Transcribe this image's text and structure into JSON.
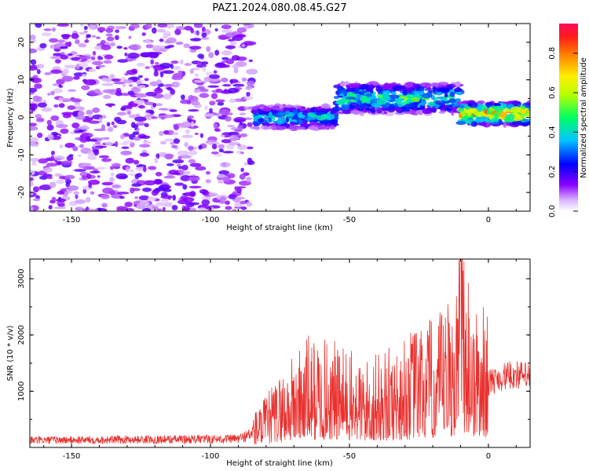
{
  "figure_title": "PAZ1.2024.080.08.45.G27",
  "chart_data": [
    {
      "type": "heatmap",
      "title": "",
      "xlabel": "Height of straight line (km)",
      "ylabel": "Frequency (Hz)",
      "xlim": [
        -165,
        15
      ],
      "ylim": [
        -25,
        25
      ],
      "xticks": [
        "-150",
        "-100",
        "-50",
        "0"
      ],
      "yticks": [
        "20",
        "10",
        "0",
        "-10",
        "-20"
      ],
      "colorbar": {
        "label": "Normalized spectral amplitude",
        "range": [
          0,
          0.95
        ],
        "ticks": [
          "0.0",
          "0.2",
          "0.4",
          "0.6",
          "0.8"
        ],
        "colormap": "gist_rainbow_r"
      },
      "regions": [
        {
          "x": [
            -165,
            -85
          ],
          "freq_center": 0,
          "pattern": "diffuse",
          "amplitude": 0.12
        },
        {
          "x": [
            -85,
            -55
          ],
          "freq_center": 0,
          "freq_width": 3,
          "amplitude": 0.4
        },
        {
          "x": [
            -55,
            -10
          ],
          "freq_center": 5,
          "freq_width": 4,
          "amplitude": 0.45
        },
        {
          "x": [
            -10,
            15
          ],
          "freq_center": 1,
          "freq_width": 3,
          "amplitude": 0.75
        }
      ]
    },
    {
      "type": "line",
      "title": "",
      "xlabel": "Height of straight line (km)",
      "ylabel": "SNR (10 * v/v)",
      "xlim": [
        -165,
        15
      ],
      "ylim": [
        0,
        3350
      ],
      "xticks": [
        "-150",
        "-100",
        "-50",
        "0"
      ],
      "yticks": [
        "1000",
        "2000",
        "3000"
      ],
      "color": "#e8312e",
      "envelope": [
        {
          "x": -165,
          "y": 150
        },
        {
          "x": -140,
          "y": 160
        },
        {
          "x": -110,
          "y": 170
        },
        {
          "x": -90,
          "y": 180
        },
        {
          "x": -82,
          "y": 350
        },
        {
          "x": -75,
          "y": 600
        },
        {
          "x": -65,
          "y": 900
        },
        {
          "x": -55,
          "y": 850
        },
        {
          "x": -45,
          "y": 700
        },
        {
          "x": -35,
          "y": 800
        },
        {
          "x": -25,
          "y": 1000
        },
        {
          "x": -18,
          "y": 1050
        },
        {
          "x": -12,
          "y": 1300
        },
        {
          "x": -9,
          "y": 1800
        },
        {
          "x": -5,
          "y": 1100
        },
        {
          "x": 0,
          "y": 1150
        },
        {
          "x": 5,
          "y": 1250
        },
        {
          "x": 10,
          "y": 1300
        },
        {
          "x": 15,
          "y": 1250
        }
      ],
      "peak": {
        "x": -10,
        "y": 3350
      }
    }
  ]
}
